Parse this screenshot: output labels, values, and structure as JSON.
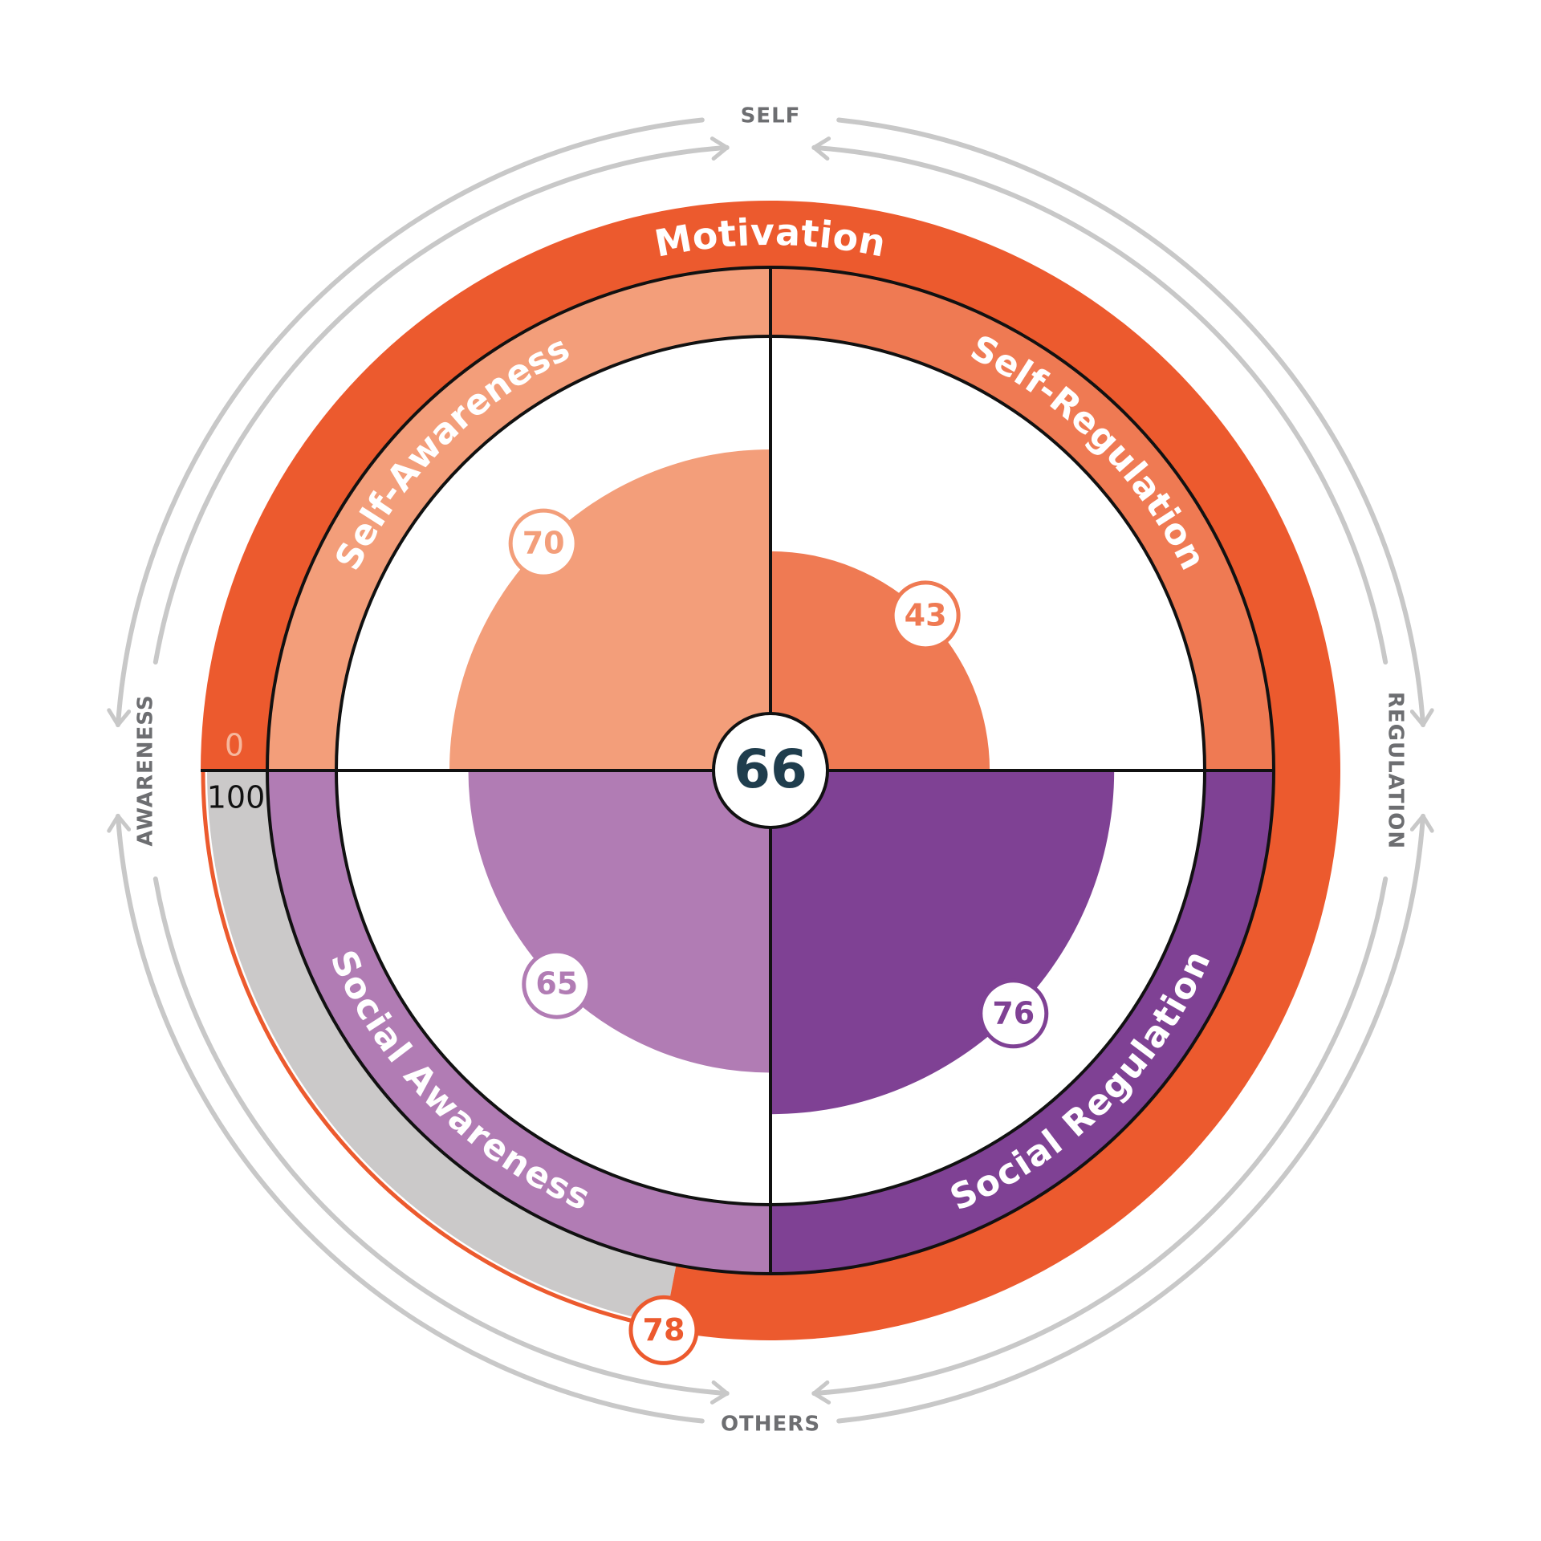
{
  "chart_data": {
    "type": "wheel",
    "center_value": 66,
    "ylim": [
      0,
      100
    ],
    "categories": [
      "Self-Awareness",
      "Self-Regulation",
      "Social Awareness",
      "Social Regulation"
    ],
    "values": [
      70,
      43,
      65,
      76
    ],
    "colors": [
      "#f39e7a",
      "#ef7a53",
      "#b17cb4",
      "#7f4194"
    ],
    "ring": {
      "label": "Motivation",
      "value": 78,
      "color": "#ec5a2e",
      "track_color": "#cbc9c9"
    },
    "directions": {
      "top": "SELF",
      "bottom": "OTHERS",
      "left": "AWARENESS",
      "right": "REGULATION"
    }
  }
}
